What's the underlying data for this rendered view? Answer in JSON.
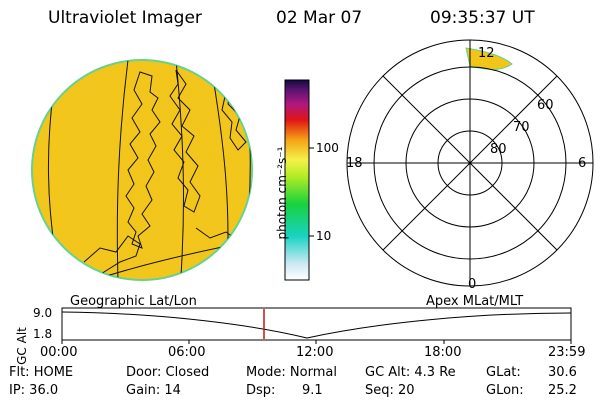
{
  "header": {
    "title": "Ultraviolet Imager",
    "date": "02 Mar 07",
    "time": "09:35:37 UT"
  },
  "colorbar": {
    "label": "photon cm⁻²s⁻¹",
    "ticks": [
      "100",
      "10"
    ]
  },
  "polar": {
    "mlt_labels": [
      "12",
      "18",
      "6",
      "0"
    ],
    "lat_labels": [
      "60",
      "70",
      "80"
    ]
  },
  "projection_labels": {
    "left": "Geographic Lat/Lon",
    "right": "Apex MLat/MLT"
  },
  "altitude_plot": {
    "ylabel": "GC Alt",
    "yticks": [
      "9.0",
      "1.8"
    ],
    "xticks": [
      "00:00",
      "06:00",
      "12:00",
      "18:00",
      "23:59"
    ],
    "current_time_marker": "09:35:37"
  },
  "status": {
    "flt": "Flt: HOME",
    "ip": "IP: 36.0",
    "door": "Door: Closed",
    "gain": "Gain: 14",
    "mode": "Mode: Normal",
    "dsp_label": "Dsp:",
    "dsp_value": "9.1",
    "gc_alt": "GC Alt: 4.3 Re",
    "seq": "Seq: 20",
    "glat_label": "GLat:",
    "glat_value": "30.6",
    "glon_label": "GLon:",
    "glon_value": "25.2"
  },
  "colors": {
    "disk_fill": "#f2c619",
    "disk_edge": "#5fd38f",
    "aurora": "#f2c619",
    "marker": "#d01010"
  }
}
